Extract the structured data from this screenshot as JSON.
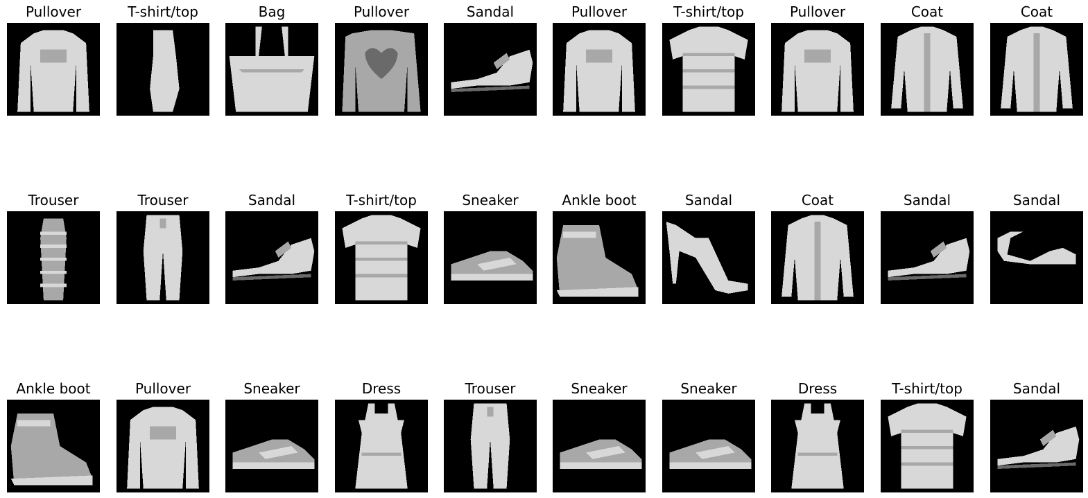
{
  "grid": {
    "rows": [
      {
        "cells": [
          {
            "label": "Pullover",
            "icon": "pullover-image"
          },
          {
            "label": "T-shirt/top",
            "icon": "dress-like-top-image"
          },
          {
            "label": "Bag",
            "icon": "bag-image"
          },
          {
            "label": "Pullover",
            "icon": "heart-pullover-image"
          },
          {
            "label": "Sandal",
            "icon": "sandal-image"
          },
          {
            "label": "Pullover",
            "icon": "pullover-image"
          },
          {
            "label": "T-shirt/top",
            "icon": "tshirt-image"
          },
          {
            "label": "Pullover",
            "icon": "pullover-image"
          },
          {
            "label": "Coat",
            "icon": "coat-image"
          },
          {
            "label": "Coat",
            "icon": "coat-image"
          }
        ]
      },
      {
        "cells": [
          {
            "label": "Trouser",
            "icon": "striped-dress-image"
          },
          {
            "label": "Trouser",
            "icon": "trouser-image"
          },
          {
            "label": "Sandal",
            "icon": "sandal-image"
          },
          {
            "label": "T-shirt/top",
            "icon": "tshirt-image"
          },
          {
            "label": "Sneaker",
            "icon": "sneaker-image"
          },
          {
            "label": "Ankle boot",
            "icon": "ankle-boot-image"
          },
          {
            "label": "Sandal",
            "icon": "high-heel-sandal-image"
          },
          {
            "label": "Coat",
            "icon": "coat-image"
          },
          {
            "label": "Sandal",
            "icon": "sandal-image"
          },
          {
            "label": "Sandal",
            "icon": "flat-sandal-image"
          }
        ]
      },
      {
        "cells": [
          {
            "label": "Ankle boot",
            "icon": "ankle-boot-image"
          },
          {
            "label": "Pullover",
            "icon": "pullover-image"
          },
          {
            "label": "Sneaker",
            "icon": "sneaker-image"
          },
          {
            "label": "Dress",
            "icon": "dress-image"
          },
          {
            "label": "Trouser",
            "icon": "trouser-image"
          },
          {
            "label": "Sneaker",
            "icon": "sneaker-image"
          },
          {
            "label": "Sneaker",
            "icon": "sneaker-image"
          },
          {
            "label": "Dress",
            "icon": "dress-image"
          },
          {
            "label": "T-shirt/top",
            "icon": "tshirt-image"
          },
          {
            "label": "Sandal",
            "icon": "sandal-image"
          }
        ]
      }
    ]
  },
  "colors": {
    "background": "#ffffff",
    "thumb_background": "#000000",
    "garment_light": "#d8d8d8",
    "garment_mid": "#a8a8a8",
    "garment_dark": "#6a6a6a"
  }
}
